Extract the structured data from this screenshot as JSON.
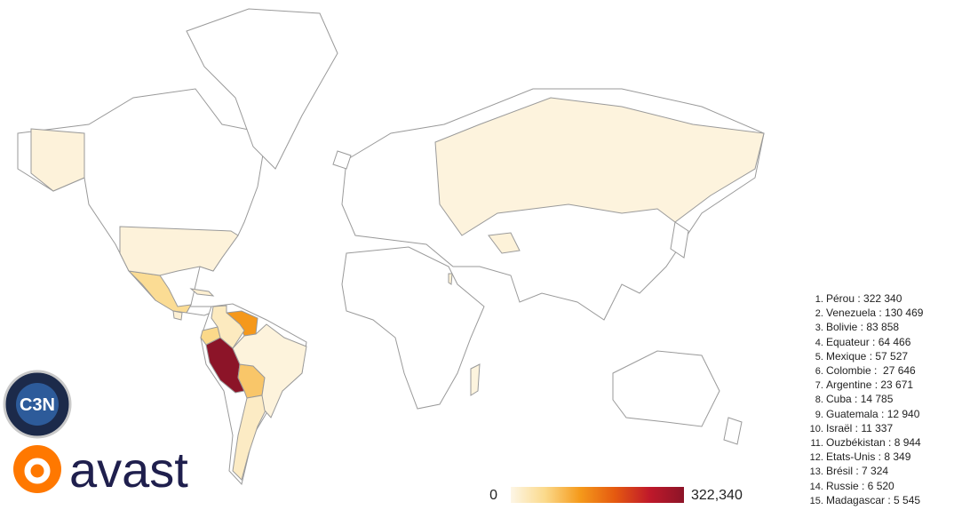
{
  "chart_data": {
    "type": "choropleth",
    "categories": [
      "Pérou : 322 340",
      "Venezuela : 130 469",
      "Bolivie : 83 858",
      "Equateur : 64 466",
      "Mexique : 57 527",
      "Colombie :  27 646",
      "Argentine : 23 671",
      "Cuba : 14 785",
      "Guatemala : 12 940",
      "Israël : 11 337",
      "Ouzbékistan : 8 944",
      "Etats-Unis : 8 349",
      "Brésil : 7 324",
      "Russie : 6 520",
      "Madagascar : 5 545"
    ],
    "values": [
      322340,
      130469,
      83858,
      64466,
      57527,
      27646,
      23671,
      14785,
      12940,
      11337,
      8944,
      8349,
      7324,
      6520,
      5545
    ],
    "colorbar": {
      "ticks": [
        0,
        {
          "value": 322340,
          "label": "322,340"
        }
      ],
      "colors": [
        "#fdf6e6",
        "#fbd98a",
        "#f59a1b",
        "#e55a10",
        "#c0192a",
        "#8c1428"
      ]
    }
  },
  "badge": "C3N",
  "logo": "avast"
}
